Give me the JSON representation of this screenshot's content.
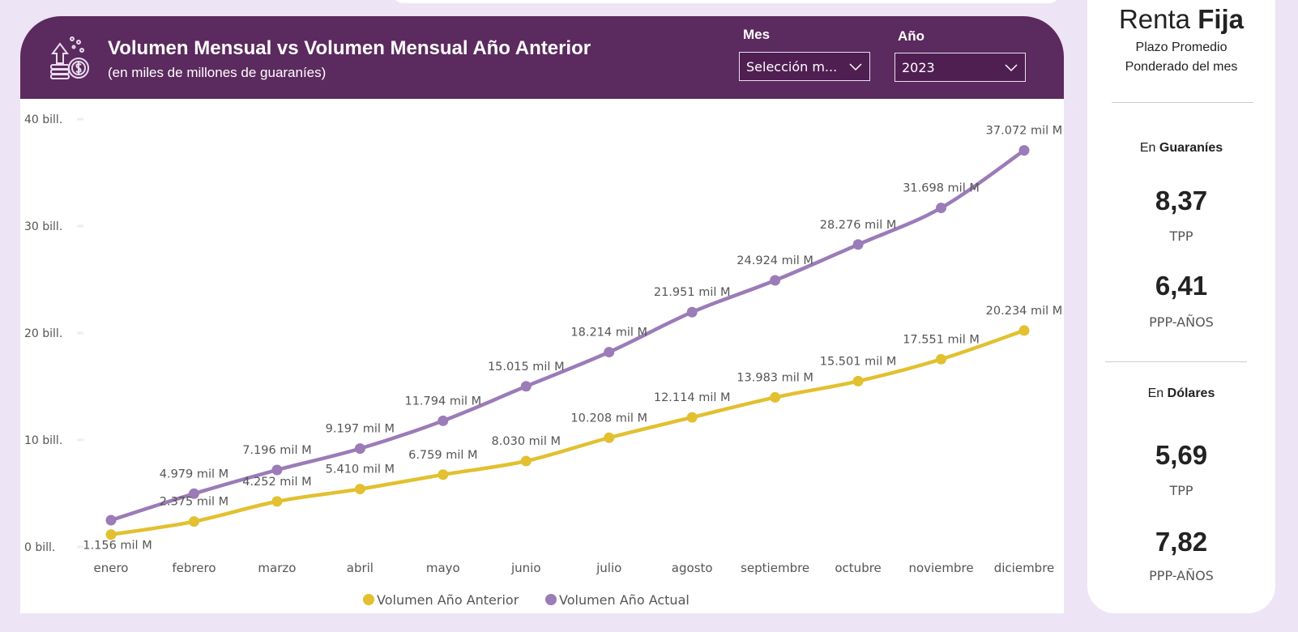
{
  "header": {
    "title": "Volumen Mensual vs Volumen Mensual Año Anterior",
    "subtitle": "(en miles de millones de guaraníes)",
    "icon": "money-growth-icon",
    "color": "#5b2a5e"
  },
  "filters": {
    "mes": {
      "label": "Mes",
      "value": "Selección m..."
    },
    "anio": {
      "label": "Año",
      "value": "2023"
    }
  },
  "chart_data": {
    "type": "line",
    "title": "Volumen Mensual vs Volumen Mensual Año Anterior",
    "ylabel": "",
    "xlabel": "",
    "ylim": [
      0,
      40
    ],
    "yticks": [
      0,
      10,
      20,
      30,
      40
    ],
    "ytick_labels": [
      "0 bill.",
      "10 bill.",
      "20 bill.",
      "30 bill.",
      "40 bill."
    ],
    "categories": [
      "enero",
      "febrero",
      "marzo",
      "abril",
      "mayo",
      "junio",
      "julio",
      "agosto",
      "septiembre",
      "octubre",
      "noviembre",
      "diciembre"
    ],
    "legend_position": "bottom",
    "series": [
      {
        "name": "Volumen Año Anterior",
        "color": "#e2c02f",
        "values": [
          1.156,
          2.375,
          4.252,
          5.41,
          6.759,
          8.03,
          10.208,
          12.114,
          13.983,
          15.501,
          17.551,
          20.234
        ],
        "labels": [
          "1.156 mil M",
          "2.375 mil M",
          "4.252 mil M",
          "5.410 mil M",
          "6.759 mil M",
          "8.030 mil M",
          "10.208 mil M",
          "12.114 mil M",
          "13.983 mil M",
          "15.501 mil M",
          "17.551 mil M",
          "20.234 mil M"
        ]
      },
      {
        "name": "Volumen Año Actual",
        "color": "#9b7bb8",
        "values": [
          2.5,
          4.979,
          7.196,
          9.197,
          11.794,
          15.015,
          18.214,
          21.951,
          24.924,
          28.276,
          31.698,
          37.072
        ],
        "labels": [
          null,
          "4.979 mil M",
          "7.196 mil M",
          "9.197 mil M",
          "11.794 mil M",
          "15.015 mil M",
          "18.214 mil M",
          "21.951 mil M",
          "24.924 mil M",
          "28.276 mil M",
          "31.698 mil M",
          "37.072 mil M"
        ]
      }
    ]
  },
  "panel": {
    "title_regular": "Renta",
    "title_bold": "Fija",
    "subtitle1": "Plazo Promedio",
    "subtitle2": "Ponderado del mes",
    "guaranies": {
      "prefix": "En",
      "label": "Guaraníes",
      "tpp": "8,37",
      "tpp_label": "TPP",
      "ppp": "6,41",
      "ppp_label": "PPP-AÑOS"
    },
    "dolares": {
      "prefix": "En",
      "label": "Dólares",
      "tpp": "5,69",
      "tpp_label": "TPP",
      "ppp": "7,82",
      "ppp_label": "PPP-AÑOS"
    }
  }
}
